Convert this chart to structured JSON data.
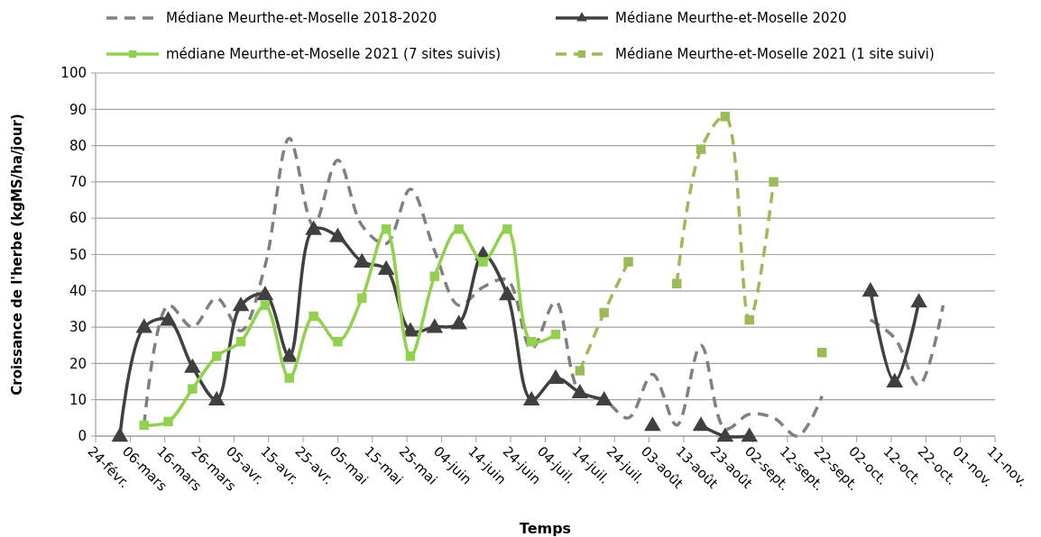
{
  "chart_data": {
    "type": "line",
    "xlabel": "Temps",
    "ylabel": "Croissance de l'herbe (kgMS/ha/jour)",
    "x": [
      "--03-03",
      "--03-10",
      "--03-17",
      "--03-24",
      "--03-31",
      "--04-07",
      "--04-14",
      "--04-21",
      "--04-28",
      "--05-05",
      "--05-12",
      "--05-19",
      "--05-26",
      "--06-02",
      "--06-09",
      "--06-16",
      "--06-23",
      "--06-30",
      "--07-07",
      "--07-14",
      "--07-21",
      "--07-28",
      "--08-04",
      "--08-11",
      "--08-18",
      "--08-25",
      "--09-01",
      "--09-08",
      "--09-15",
      "--09-22",
      "--09-29",
      "--10-06",
      "--10-13",
      "--10-20",
      "--10-27"
    ],
    "series": [
      {
        "name": "Médiane Meurthe-et-Moselle 2018-2020",
        "color": "#808080",
        "line_style": "dashed",
        "marker": "none",
        "values": [
          null,
          3,
          36,
          30,
          38,
          29,
          47,
          82,
          58,
          76,
          58,
          53,
          68,
          51,
          36,
          41,
          43,
          24,
          37,
          12,
          10,
          5,
          17,
          3,
          25,
          2,
          6,
          5,
          0,
          11,
          null,
          32,
          27,
          14,
          36
        ]
      },
      {
        "name": "Médiane Meurthe-et-Moselle 2020",
        "color": "#404040",
        "line_style": "solid",
        "marker": "triangle",
        "values": [
          0,
          30,
          32,
          19,
          10,
          36,
          39,
          22,
          57,
          55,
          48,
          46,
          29,
          30,
          31,
          50,
          39,
          10,
          16,
          12,
          10,
          null,
          3,
          null,
          3,
          0,
          0,
          null,
          null,
          null,
          null,
          40,
          15,
          37,
          null
        ]
      },
      {
        "name": "médiane Meurthe-et-Moselle 2021 (7 sites suivis)",
        "color": "#92d050",
        "line_style": "solid",
        "marker": "square",
        "values": [
          null,
          3,
          4,
          13,
          22,
          26,
          36,
          16,
          33,
          26,
          38,
          57,
          22,
          44,
          57,
          48,
          57,
          26,
          28,
          null,
          null,
          null,
          null,
          null,
          null,
          null,
          null,
          null,
          null,
          null,
          null,
          null,
          null,
          null,
          null
        ]
      },
      {
        "name": "Médiane Meurthe-et-Moselle 2021 (1 site suivi)",
        "color": "#9bbb59",
        "line_style": "dashed",
        "marker": "square",
        "values": [
          null,
          null,
          null,
          null,
          null,
          null,
          null,
          null,
          null,
          null,
          null,
          null,
          null,
          null,
          null,
          null,
          null,
          null,
          null,
          18,
          34,
          48,
          null,
          42,
          79,
          88,
          32,
          70,
          null,
          23,
          null,
          null,
          null,
          null,
          null
        ]
      }
    ],
    "xlim": [
      "--02-24",
      "--11-11"
    ],
    "xticks": [
      {
        "value": "--02-24",
        "label": "24-févr."
      },
      {
        "value": "--03-06",
        "label": "06-mars"
      },
      {
        "value": "--03-16",
        "label": "16-mars"
      },
      {
        "value": "--03-26",
        "label": "26-mars"
      },
      {
        "value": "--04-05",
        "label": "05-avr."
      },
      {
        "value": "--04-15",
        "label": "15-avr."
      },
      {
        "value": "--04-25",
        "label": "25-avr."
      },
      {
        "value": "--05-05",
        "label": "05-mai"
      },
      {
        "value": "--05-15",
        "label": "15-mai"
      },
      {
        "value": "--05-25",
        "label": "25-mai"
      },
      {
        "value": "--06-04",
        "label": "04-juin"
      },
      {
        "value": "--06-14",
        "label": "14-juin"
      },
      {
        "value": "--06-24",
        "label": "24-juin"
      },
      {
        "value": "--07-04",
        "label": "04-juil."
      },
      {
        "value": "--07-14",
        "label": "14-juil."
      },
      {
        "value": "--07-24",
        "label": "24-juil."
      },
      {
        "value": "--08-03",
        "label": "03-août"
      },
      {
        "value": "--08-13",
        "label": "13-août"
      },
      {
        "value": "--08-23",
        "label": "23-août"
      },
      {
        "value": "--09-02",
        "label": "02-sept."
      },
      {
        "value": "--09-12",
        "label": "12-sept."
      },
      {
        "value": "--09-22",
        "label": "22-sept."
      },
      {
        "value": "--10-02",
        "label": "02-oct."
      },
      {
        "value": "--10-12",
        "label": "12-oct."
      },
      {
        "value": "--10-22",
        "label": "22-oct."
      },
      {
        "value": "--11-01",
        "label": "01-nov."
      },
      {
        "value": "--11-11",
        "label": "11-nov."
      }
    ],
    "ylim": [
      0,
      100
    ],
    "yticks": [
      0,
      10,
      20,
      30,
      40,
      50,
      60,
      70,
      80,
      90,
      100
    ],
    "grid": "y",
    "legend": "top"
  }
}
